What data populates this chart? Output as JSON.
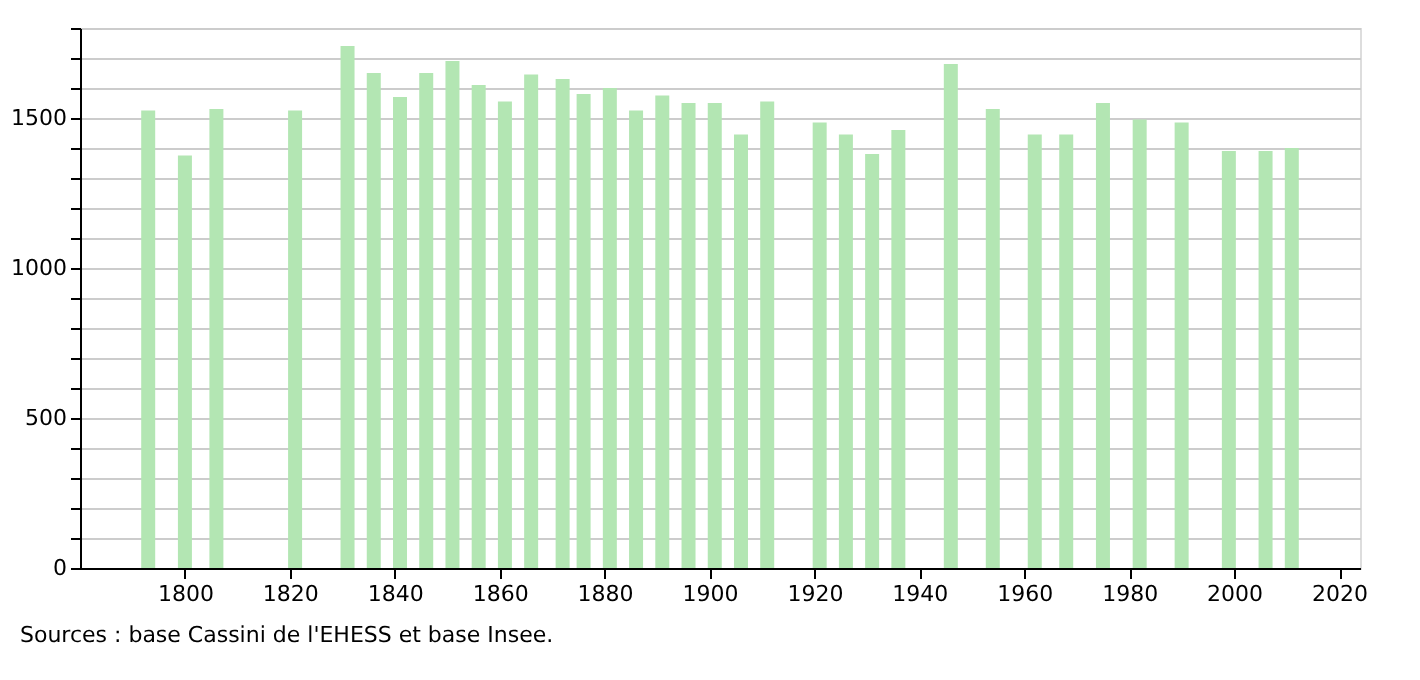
{
  "chart_data": {
    "type": "bar",
    "x": [
      1793,
      1800,
      1806,
      1821,
      1831,
      1836,
      1841,
      1846,
      1851,
      1856,
      1861,
      1866,
      1872,
      1876,
      1881,
      1886,
      1891,
      1896,
      1901,
      1906,
      1911,
      1921,
      1926,
      1931,
      1936,
      1946,
      1954,
      1962,
      1968,
      1975,
      1982,
      1990,
      1999,
      2006,
      2011
    ],
    "series": [
      {
        "color": "#b3e6b3",
        "values": [
          1525,
          1375,
          1530,
          1525,
          1740,
          1650,
          1570,
          1650,
          1690,
          1610,
          1555,
          1645,
          1630,
          1580,
          1600,
          1525,
          1575,
          1550,
          1550,
          1445,
          1555,
          1485,
          1445,
          1380,
          1460,
          1680,
          1530,
          1445,
          1445,
          1550,
          1495,
          1485,
          1390,
          1390,
          1400
        ]
      }
    ],
    "xlim": [
      1780,
      2024
    ],
    "xticks": [
      1800,
      1820,
      1840,
      1860,
      1880,
      1900,
      1920,
      1940,
      1960,
      1980,
      2000,
      2020
    ],
    "ylim": [
      0,
      1800
    ],
    "yticks": [
      0,
      {
        "value": 100,
        "label": null
      },
      {
        "value": 200,
        "label": null
      },
      {
        "value": 300,
        "label": null
      },
      {
        "value": 400,
        "label": null
      },
      500,
      {
        "value": 600,
        "label": null
      },
      {
        "value": 700,
        "label": null
      },
      {
        "value": 800,
        "label": null
      },
      {
        "value": 900,
        "label": null
      },
      1000,
      {
        "value": 1100,
        "label": null
      },
      {
        "value": 1200,
        "label": null
      },
      {
        "value": 1300,
        "label": null
      },
      {
        "value": 1400,
        "label": null
      },
      1500,
      {
        "value": 1600,
        "label": null
      },
      {
        "value": 1700,
        "label": null
      },
      {
        "value": 1800,
        "label": null
      }
    ],
    "grid": "y",
    "annotations": [
      "Sources : base Cassini de l'EHESS et base Insee."
    ]
  }
}
